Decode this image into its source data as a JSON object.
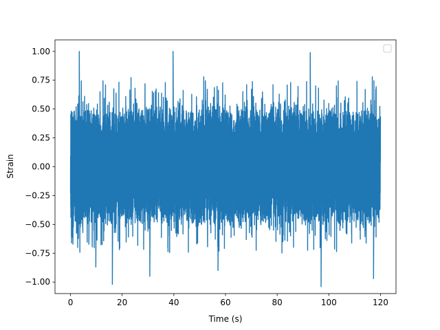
{
  "chart_data": {
    "type": "line",
    "title": "",
    "xlabel": "Time (s)",
    "ylabel": "Strain",
    "xlim": [
      -6.0,
      126.0
    ],
    "ylim": [
      -1.1,
      1.1
    ],
    "xticks": [
      0,
      20,
      40,
      60,
      80,
      100,
      120
    ],
    "xtick_labels": [
      "0",
      "20",
      "40",
      "60",
      "80",
      "100",
      "120"
    ],
    "yticks": [
      -1.0,
      -0.75,
      -0.5,
      -0.25,
      0.0,
      0.25,
      0.5,
      0.75,
      1.0
    ],
    "ytick_labels": [
      "−1.00",
      "−0.75",
      "−0.50",
      "−0.25",
      "0.00",
      "0.25",
      "0.50",
      "0.75",
      "1.00"
    ],
    "grid": false,
    "legend": {
      "placement": "top-right",
      "entries": []
    },
    "series": [
      {
        "color": "#1f77b4",
        "x_range": [
          0,
          120
        ],
        "baseline": 0.0,
        "envelope_positive": 0.55,
        "envelope_negative": -0.5,
        "extremes": [
          {
            "x": 3.4,
            "y": 1.0
          },
          {
            "x": 39.7,
            "y": 1.0
          },
          {
            "x": 92.8,
            "y": 0.99
          },
          {
            "x": 16.2,
            "y": -1.02
          },
          {
            "x": 97.0,
            "y": -1.04
          },
          {
            "x": 30.7,
            "y": -0.95
          },
          {
            "x": 117.3,
            "y": -0.97
          },
          {
            "x": 57.1,
            "y": -0.9
          },
          {
            "x": 9.8,
            "y": -0.87
          }
        ]
      }
    ]
  }
}
